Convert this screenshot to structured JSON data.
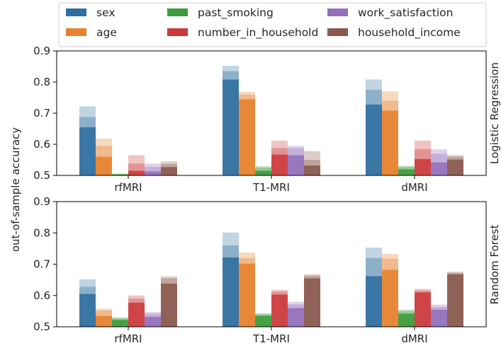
{
  "chart_data": {
    "type": "bar",
    "ylabel": "out-of-sample accuracy",
    "categories": [
      "rfMRI",
      "T1-MRI",
      "dMRI"
    ],
    "legend_position": "top",
    "colors": {
      "sex": "#2f6f9f",
      "age": "#e6822e",
      "past_smoking": "#3c9b3c",
      "number_in_household": "#cc3a3c",
      "work_satisfaction": "#9470bb",
      "household_income": "#8a584d"
    },
    "series_names": [
      "sex",
      "age",
      "past_smoking",
      "number_in_household",
      "work_satisfaction",
      "household_income"
    ],
    "panels": [
      {
        "label": "Logistic Regression",
        "ylim": [
          0.5,
          0.9
        ],
        "yticks": [
          "0.5",
          "0.6",
          "0.7",
          "0.8",
          "0.9"
        ],
        "series": [
          {
            "name": "sex",
            "values": [
              [
                0.655,
                0.688,
                0.722
              ],
              [
                0.808,
                0.835,
                0.852
              ],
              [
                0.728,
                0.775,
                0.808
              ]
            ]
          },
          {
            "name": "age",
            "values": [
              [
                0.56,
                0.595,
                0.618
              ],
              [
                0.745,
                0.76,
                0.768
              ],
              [
                0.708,
                0.74,
                0.77
              ]
            ]
          },
          {
            "name": "past_smoking",
            "values": [
              [
                0.503,
                0.505,
                0.506
              ],
              [
                0.515,
                0.525,
                0.53
              ],
              [
                0.52,
                0.527,
                0.531
              ]
            ]
          },
          {
            "name": "number_in_household",
            "values": [
              [
                0.515,
                0.538,
                0.565
              ],
              [
                0.567,
                0.588,
                0.612
              ],
              [
                0.553,
                0.585,
                0.612
              ]
            ]
          },
          {
            "name": "work_satisfaction",
            "values": [
              [
                0.513,
                0.528,
                0.538
              ],
              [
                0.565,
                0.588,
                0.595
              ],
              [
                0.542,
                0.57,
                0.584
              ]
            ]
          },
          {
            "name": "household_income",
            "values": [
              [
                0.527,
                0.537,
                0.545
              ],
              [
                0.532,
                0.55,
                0.578
              ],
              [
                0.551,
                0.56,
                0.565
              ]
            ]
          }
        ]
      },
      {
        "label": "Random Forest",
        "ylim": [
          0.5,
          0.9
        ],
        "yticks": [
          "0.5",
          "0.6",
          "0.7",
          "0.8",
          "0.9"
        ],
        "series": [
          {
            "name": "sex",
            "values": [
              [
                0.605,
                0.628,
                0.652
              ],
              [
                0.722,
                0.76,
                0.801
              ],
              [
                0.662,
                0.72,
                0.753
              ]
            ]
          },
          {
            "name": "age",
            "values": [
              [
                0.535,
                0.552,
                0.558
              ],
              [
                0.702,
                0.72,
                0.737
              ],
              [
                0.682,
                0.718,
                0.733
              ]
            ]
          },
          {
            "name": "past_smoking",
            "values": [
              [
                0.522,
                0.527,
                0.53
              ],
              [
                0.535,
                0.54,
                0.543
              ],
              [
                0.542,
                0.55,
                0.555
              ]
            ]
          },
          {
            "name": "number_in_household",
            "values": [
              [
                0.577,
                0.59,
                0.6
              ],
              [
                0.603,
                0.612,
                0.618
              ],
              [
                0.61,
                0.616,
                0.621
              ]
            ]
          },
          {
            "name": "work_satisfaction",
            "values": [
              [
                0.532,
                0.542,
                0.547
              ],
              [
                0.56,
                0.572,
                0.58
              ],
              [
                0.555,
                0.563,
                0.571
              ]
            ]
          },
          {
            "name": "household_income",
            "values": [
              [
                0.638,
                0.655,
                0.661
              ],
              [
                0.655,
                0.663,
                0.668
              ],
              [
                0.668,
                0.672,
                0.676
              ]
            ]
          }
        ]
      }
    ]
  }
}
